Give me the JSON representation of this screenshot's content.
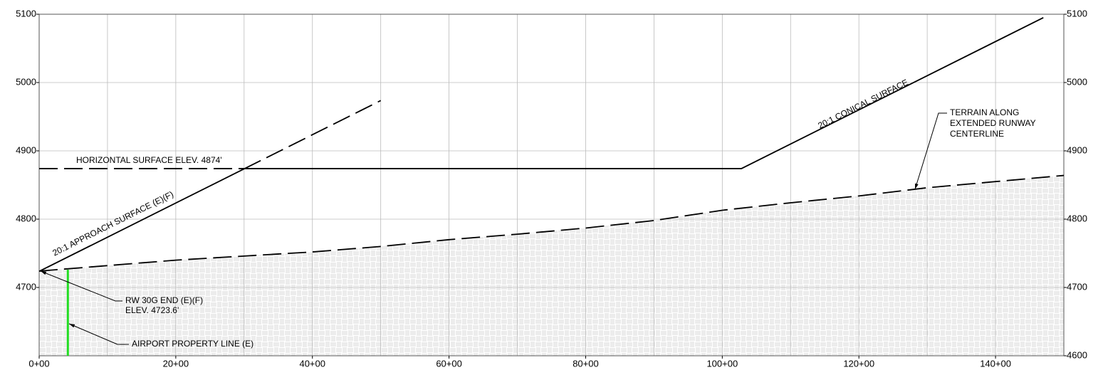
{
  "chart_data": {
    "type": "line",
    "xlim": [
      0,
      150
    ],
    "ylim": [
      4600,
      5100
    ],
    "y2lim": [
      4600,
      5100
    ],
    "xticks": [
      {
        "value": 0,
        "label": "0+00"
      },
      {
        "value": 20,
        "label": "20+00"
      },
      {
        "value": 40,
        "label": "40+00"
      },
      {
        "value": 60,
        "label": "60+00"
      },
      {
        "value": 80,
        "label": "80+00"
      },
      {
        "value": 100,
        "label": "100+00"
      },
      {
        "value": 120,
        "label": "120+00"
      },
      {
        "value": 140,
        "label": "140+00"
      }
    ],
    "xgrid": [
      10,
      30,
      50,
      70,
      90,
      110,
      130,
      150
    ],
    "yticks": [
      4700,
      4800,
      4900,
      5000,
      5100
    ],
    "y2ticks": [
      4600,
      4700,
      4800,
      4900,
      5000,
      5100
    ],
    "grid": true,
    "series": [
      {
        "x": [
          0,
          30
        ],
        "values": [
          4723.6,
          4873.6
        ],
        "color": "#000000",
        "dashed": false
      },
      {
        "x": [
          30,
          50
        ],
        "values": [
          4873.6,
          4973.6
        ],
        "color": "#000000",
        "dashed": true
      },
      {
        "x": [
          0,
          30
        ],
        "values": [
          4874,
          4874
        ],
        "color": "#000000",
        "dashed": true
      },
      {
        "x": [
          30,
          102.8,
          147
        ],
        "values": [
          4874,
          4874,
          5095
        ],
        "color": "#000000",
        "dashed": false
      },
      {
        "x": [
          0,
          15,
          20,
          30,
          40,
          50,
          60,
          70,
          80,
          90,
          100,
          110,
          120,
          130,
          140,
          150
        ],
        "values": [
          4724,
          4736,
          4740,
          4746,
          4752,
          4760,
          4770,
          4778,
          4787,
          4798,
          4813,
          4824,
          4834,
          4846,
          4855,
          4864
        ],
        "color": "#000000",
        "dashed": true,
        "fill": "hatch"
      },
      {
        "x": [
          4.2,
          4.2
        ],
        "values": [
          4600,
          4726
        ],
        "color": "#22dd22",
        "dashed": false
      }
    ],
    "annotations": {
      "horizontal": "HORIZONTAL SURFACE ELEV. 4874'",
      "approach": "20:1 APPROACH SURFACE (E)(F)",
      "conical": "20:1 CONICAL SURFACE",
      "terrain": [
        "TERRAIN ALONG",
        "EXTENDED RUNWAY",
        "CENTERLINE"
      ],
      "runway_end": [
        "RW 30G END (E)(F)",
        "ELEV. 4723.6'"
      ],
      "property": "AIRPORT PROPERTY LINE (E)"
    }
  }
}
